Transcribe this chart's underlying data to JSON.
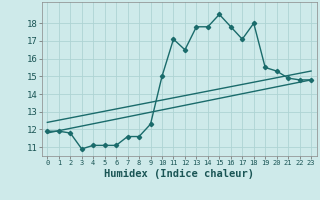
{
  "xlabel": "Humidex (Indice chaleur)",
  "bg_color": "#ceeaea",
  "line_color": "#1a6b6b",
  "grid_color": "#aed4d4",
  "xlim": [
    -0.5,
    23.5
  ],
  "ylim": [
    10.5,
    19.2
  ],
  "xticks": [
    0,
    1,
    2,
    3,
    4,
    5,
    6,
    7,
    8,
    9,
    10,
    11,
    12,
    13,
    14,
    15,
    16,
    17,
    18,
    19,
    20,
    21,
    22,
    23
  ],
  "yticks": [
    11,
    12,
    13,
    14,
    15,
    16,
    17,
    18
  ],
  "curve1_x": [
    0,
    1,
    2,
    3,
    4,
    5,
    6,
    7,
    8,
    9,
    10,
    11,
    12,
    13,
    14,
    15,
    16,
    17,
    18,
    19,
    20,
    21,
    22,
    23
  ],
  "curve1_y": [
    11.9,
    11.9,
    11.8,
    10.9,
    11.1,
    11.1,
    11.1,
    11.6,
    11.6,
    12.3,
    15.0,
    17.1,
    16.5,
    17.8,
    17.8,
    18.5,
    17.8,
    17.1,
    18.0,
    15.5,
    15.3,
    14.9,
    14.8,
    14.8
  ],
  "curve2_x": [
    0,
    23
  ],
  "curve2_y": [
    11.8,
    14.8
  ],
  "curve3_x": [
    0,
    23
  ],
  "curve3_y": [
    12.4,
    15.3
  ],
  "marker_style": "D",
  "marker_size": 2.2,
  "linewidth": 1.0,
  "xlabel_fontsize": 7.5,
  "xtick_fontsize": 5.0,
  "ytick_fontsize": 6.5
}
